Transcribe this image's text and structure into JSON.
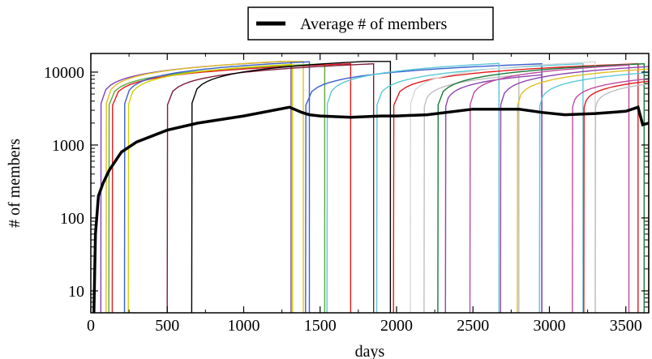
{
  "chart_data": {
    "type": "line",
    "xlabel": "days",
    "ylabel": "# of members",
    "xlim": [
      0,
      3650
    ],
    "ylim": [
      5,
      18000
    ],
    "yscale": "log",
    "grid": false,
    "legend": {
      "placement": "top-center",
      "entries": [
        "Average # of members"
      ]
    },
    "x_ticks": [
      0,
      500,
      1000,
      1500,
      2000,
      2500,
      3000,
      3500
    ],
    "x_tick_labels": [
      "0",
      "500",
      "1000",
      "1500",
      "2000",
      "2500",
      "3000",
      "3500"
    ],
    "y_ticks": [
      10,
      100,
      1000,
      10000
    ],
    "y_tick_labels": [
      "10",
      "100",
      "1000",
      "10000"
    ],
    "average_series": {
      "name": "Average # of members",
      "color": "#000000",
      "x": [
        30,
        50,
        80,
        120,
        200,
        300,
        500,
        700,
        1000,
        1300,
        1380,
        1430,
        1500,
        1700,
        1900,
        2000,
        2200,
        2500,
        2800,
        2950,
        3100,
        3300,
        3500,
        3580,
        3610,
        3650
      ],
      "y": [
        60,
        200,
        300,
        450,
        800,
        1100,
        1600,
        2000,
        2500,
        3300,
        2800,
        2600,
        2500,
        2400,
        2500,
        2500,
        2600,
        3100,
        3100,
        2800,
        2600,
        2700,
        2900,
        3300,
        1900,
        2000
      ]
    },
    "growth_curves": [
      {
        "start": 65,
        "end": 1310,
        "color": "#7d3fbf"
      },
      {
        "start": 100,
        "end": 1390,
        "color": "#e0c020"
      },
      {
        "start": 118,
        "end": 1530,
        "color": "#62a83a"
      },
      {
        "start": 140,
        "end": 1700,
        "color": "#e31a1c"
      },
      {
        "start": 220,
        "end": 1430,
        "color": "#3a5fcd"
      },
      {
        "start": 245,
        "end": 1320,
        "color": "#d2d200"
      },
      {
        "start": 500,
        "end": 1850,
        "color": "#7b1e3a"
      },
      {
        "start": 660,
        "end": 1960,
        "color": "#000000"
      },
      {
        "start": 1405,
        "end": 2950,
        "color": "#3a5fcd"
      },
      {
        "start": 1545,
        "end": 2670,
        "color": "#5bc8d8"
      },
      {
        "start": 1870,
        "end": 3220,
        "color": "#5bc8d8"
      },
      {
        "start": 1980,
        "end": 3580,
        "color": "#e31a1c"
      },
      {
        "start": 2090,
        "end": 3300,
        "color": "#d8d8d8"
      },
      {
        "start": 2180,
        "end": 2800,
        "color": "#bfbfbf"
      },
      {
        "start": 2270,
        "end": 3620,
        "color": "#1a7a3a"
      },
      {
        "start": 2320,
        "end": 2950,
        "color": "#8e44ad"
      },
      {
        "start": 2480,
        "end": 3520,
        "color": "#c04aa0"
      },
      {
        "start": 2680,
        "end": 3650,
        "color": "#8e44ad"
      },
      {
        "start": 2790,
        "end": 3650,
        "color": "#e0c020"
      },
      {
        "start": 2935,
        "end": 3650,
        "color": "#5bc8d8"
      },
      {
        "start": 3150,
        "end": 3650,
        "color": "#c04aa0"
      },
      {
        "start": 3225,
        "end": 3650,
        "color": "#e31a1c"
      },
      {
        "start": 3300,
        "end": 3650,
        "color": "#bfbfbf"
      }
    ]
  }
}
